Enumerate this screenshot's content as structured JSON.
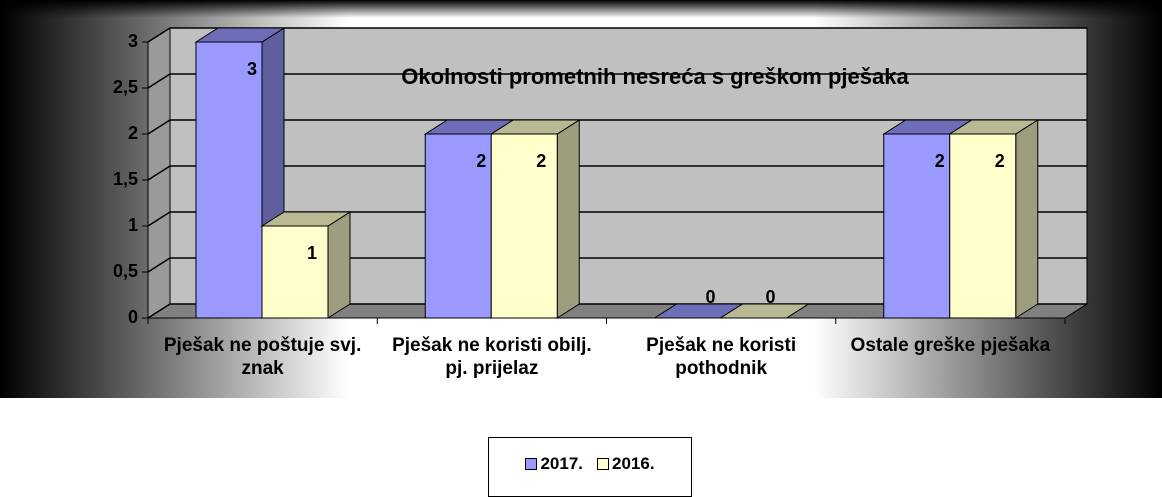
{
  "chart_data": {
    "type": "bar3d",
    "title": "Okolnosti prometnih nesreća s greškom pješaka",
    "categories": [
      "Pješak ne poštuje svj. znak",
      "Pješak ne koristi obilj. pj. prijelaz",
      "Pješak ne koristi pothodnik",
      "Ostale greške pješaka"
    ],
    "series": [
      {
        "name": "2017.",
        "color": "#9999ff",
        "values": [
          3,
          2,
          0,
          2
        ]
      },
      {
        "name": "2016.",
        "color": "#ffffcc",
        "values": [
          1,
          2,
          0,
          2
        ]
      }
    ],
    "ylim": [
      0,
      3
    ],
    "yticks": [
      0,
      {
        "value": 0.5,
        "label": "0,5"
      },
      1,
      {
        "value": 1.5,
        "label": "1,5"
      },
      2,
      {
        "value": 2.5,
        "label": "2,5"
      },
      3
    ],
    "grid": true,
    "legend": "bottom"
  }
}
